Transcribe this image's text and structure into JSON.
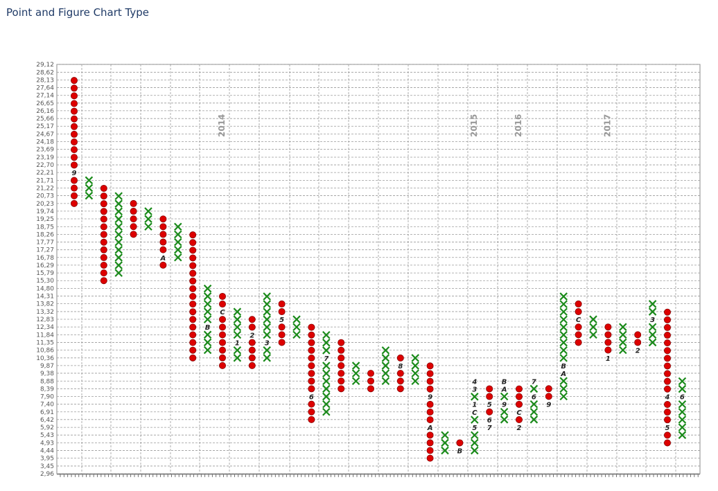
{
  "title": "Point and Figure Chart Type",
  "colors": {
    "x_mark": "#1a8a1a",
    "o_mark": "#dd0000",
    "o_edge": "#880000",
    "grid": "#9a9a9a",
    "title": "#1f3a66"
  },
  "chart_data": {
    "type": "point-and-figure",
    "title": "Point and Figure Chart Type",
    "box_size": 0.4915,
    "grid": true,
    "ylim": [
      2.96,
      29.12
    ],
    "y_ticks": [
      "29,12",
      "28,62",
      "28,13",
      "27,64",
      "27,14",
      "26,65",
      "26,16",
      "25,66",
      "25,17",
      "24,67",
      "24,18",
      "23,69",
      "23,19",
      "22,70",
      "22,21",
      "21,71",
      "21,22",
      "20,73",
      "20,23",
      "19,74",
      "19,25",
      "18,75",
      "18,26",
      "17,77",
      "17,27",
      "16,78",
      "16,29",
      "15,79",
      "15,30",
      "14,80",
      "14,31",
      "13,82",
      "13,32",
      "12,83",
      "12,34",
      "11,84",
      "11,35",
      "10,86",
      "10,36",
      "9,87",
      "9,38",
      "8,88",
      "8,39",
      "7,90",
      "7,40",
      "6,91",
      "6,42",
      "5,92",
      "5,43",
      "4,93",
      "4,44",
      "3,95",
      "3,45",
      "2,96"
    ],
    "columns": [
      {
        "type": "O",
        "low": 20.23,
        "high": 28.13
      },
      {
        "type": "X",
        "low": 20.73,
        "high": 21.71
      },
      {
        "type": "O",
        "low": 15.3,
        "high": 21.22
      },
      {
        "type": "X",
        "low": 15.79,
        "high": 20.73
      },
      {
        "type": "O",
        "low": 18.26,
        "high": 20.23
      },
      {
        "type": "X",
        "low": 18.75,
        "high": 19.74
      },
      {
        "type": "O",
        "low": 16.29,
        "high": 19.25
      },
      {
        "type": "X",
        "low": 16.78,
        "high": 18.75
      },
      {
        "type": "O",
        "low": 10.36,
        "high": 18.26
      },
      {
        "type": "X",
        "low": 10.86,
        "high": 14.8
      },
      {
        "type": "O",
        "low": 9.87,
        "high": 14.31
      },
      {
        "type": "X",
        "low": 10.36,
        "high": 13.32
      },
      {
        "type": "O",
        "low": 9.87,
        "high": 12.83
      },
      {
        "type": "X",
        "low": 10.36,
        "high": 14.31
      },
      {
        "type": "O",
        "low": 11.35,
        "high": 13.82
      },
      {
        "type": "X",
        "low": 11.84,
        "high": 12.83
      },
      {
        "type": "O",
        "low": 6.42,
        "high": 12.34
      },
      {
        "type": "X",
        "low": 6.91,
        "high": 11.84
      },
      {
        "type": "O",
        "low": 8.39,
        "high": 11.35
      },
      {
        "type": "X",
        "low": 8.88,
        "high": 9.87
      },
      {
        "type": "O",
        "low": 8.39,
        "high": 9.38
      },
      {
        "type": "X",
        "low": 8.88,
        "high": 10.86
      },
      {
        "type": "O",
        "low": 8.39,
        "high": 10.36
      },
      {
        "type": "X",
        "low": 8.88,
        "high": 10.36
      },
      {
        "type": "O",
        "low": 3.95,
        "high": 9.87
      },
      {
        "type": "X",
        "low": 4.44,
        "high": 5.43
      },
      {
        "type": "O",
        "low": 4.44,
        "high": 4.93
      },
      {
        "type": "X",
        "low": 4.44,
        "high": 7.9
      },
      {
        "type": "O",
        "low": 6.91,
        "high": 8.39
      },
      {
        "type": "X",
        "low": 6.42,
        "high": 8.39
      },
      {
        "type": "O",
        "low": 5.92,
        "high": 8.39
      },
      {
        "type": "X",
        "low": 6.42,
        "high": 8.39
      },
      {
        "type": "O",
        "low": 7.9,
        "high": 8.39
      },
      {
        "type": "X",
        "low": 7.9,
        "high": 14.31
      },
      {
        "type": "O",
        "low": 11.35,
        "high": 13.82
      },
      {
        "type": "X",
        "low": 11.84,
        "high": 12.83
      },
      {
        "type": "O",
        "low": 10.86,
        "high": 12.34
      },
      {
        "type": "X",
        "low": 10.86,
        "high": 12.34
      },
      {
        "type": "O",
        "low": 11.35,
        "high": 11.84
      },
      {
        "type": "X",
        "low": 11.35,
        "high": 13.82
      },
      {
        "type": "O",
        "low": 4.93,
        "high": 13.32
      },
      {
        "type": "X",
        "low": 5.43,
        "high": 8.88
      }
    ],
    "month_labels": [
      {
        "col": 0,
        "price": 22.21,
        "text": "9"
      },
      {
        "col": 6,
        "price": 16.78,
        "text": "A"
      },
      {
        "col": 9,
        "price": 12.34,
        "text": "B"
      },
      {
        "col": 10,
        "price": 13.32,
        "text": "C"
      },
      {
        "col": 11,
        "price": 11.35,
        "text": "1"
      },
      {
        "col": 12,
        "price": 11.84,
        "text": "2"
      },
      {
        "col": 13,
        "price": 11.35,
        "text": "3"
      },
      {
        "col": 14,
        "price": 12.83,
        "text": "5"
      },
      {
        "col": 16,
        "price": 7.9,
        "text": "6"
      },
      {
        "col": 17,
        "price": 10.36,
        "text": "7"
      },
      {
        "col": 22,
        "price": 9.87,
        "text": "8"
      },
      {
        "col": 24,
        "price": 7.9,
        "text": "9"
      },
      {
        "col": 24,
        "price": 5.92,
        "text": "A"
      },
      {
        "col": 26,
        "price": 4.44,
        "text": "B"
      },
      {
        "col": 27,
        "price": 8.88,
        "text": "4"
      },
      {
        "col": 27,
        "price": 8.39,
        "text": "3"
      },
      {
        "col": 27,
        "price": 7.4,
        "text": "1"
      },
      {
        "col": 27,
        "price": 6.91,
        "text": "C"
      },
      {
        "col": 27,
        "price": 5.92,
        "text": "5"
      },
      {
        "col": 28,
        "price": 7.4,
        "text": "5"
      },
      {
        "col": 28,
        "price": 6.42,
        "text": "6"
      },
      {
        "col": 28,
        "price": 5.92,
        "text": "7"
      },
      {
        "col": 29,
        "price": 8.88,
        "text": "B"
      },
      {
        "col": 29,
        "price": 8.39,
        "text": "A"
      },
      {
        "col": 29,
        "price": 7.4,
        "text": "9"
      },
      {
        "col": 30,
        "price": 6.91,
        "text": "C"
      },
      {
        "col": 30,
        "price": 5.92,
        "text": "2"
      },
      {
        "col": 31,
        "price": 8.88,
        "text": "7"
      },
      {
        "col": 31,
        "price": 7.9,
        "text": "6"
      },
      {
        "col": 32,
        "price": 7.4,
        "text": "9"
      },
      {
        "col": 33,
        "price": 9.87,
        "text": "B"
      },
      {
        "col": 33,
        "price": 9.38,
        "text": "A"
      },
      {
        "col": 34,
        "price": 12.83,
        "text": "C"
      },
      {
        "col": 36,
        "price": 10.36,
        "text": "1"
      },
      {
        "col": 38,
        "price": 10.86,
        "text": "2"
      },
      {
        "col": 39,
        "price": 12.83,
        "text": "3"
      },
      {
        "col": 40,
        "price": 7.9,
        "text": "4"
      },
      {
        "col": 40,
        "price": 5.92,
        "text": "5"
      },
      {
        "col": 41,
        "price": 7.9,
        "text": "6"
      }
    ],
    "year_labels": [
      {
        "text": "2014",
        "col": 10
      },
      {
        "text": "2015",
        "col": 27
      },
      {
        "text": "2016",
        "col": 30
      },
      {
        "text": "2017",
        "col": 36
      }
    ]
  }
}
